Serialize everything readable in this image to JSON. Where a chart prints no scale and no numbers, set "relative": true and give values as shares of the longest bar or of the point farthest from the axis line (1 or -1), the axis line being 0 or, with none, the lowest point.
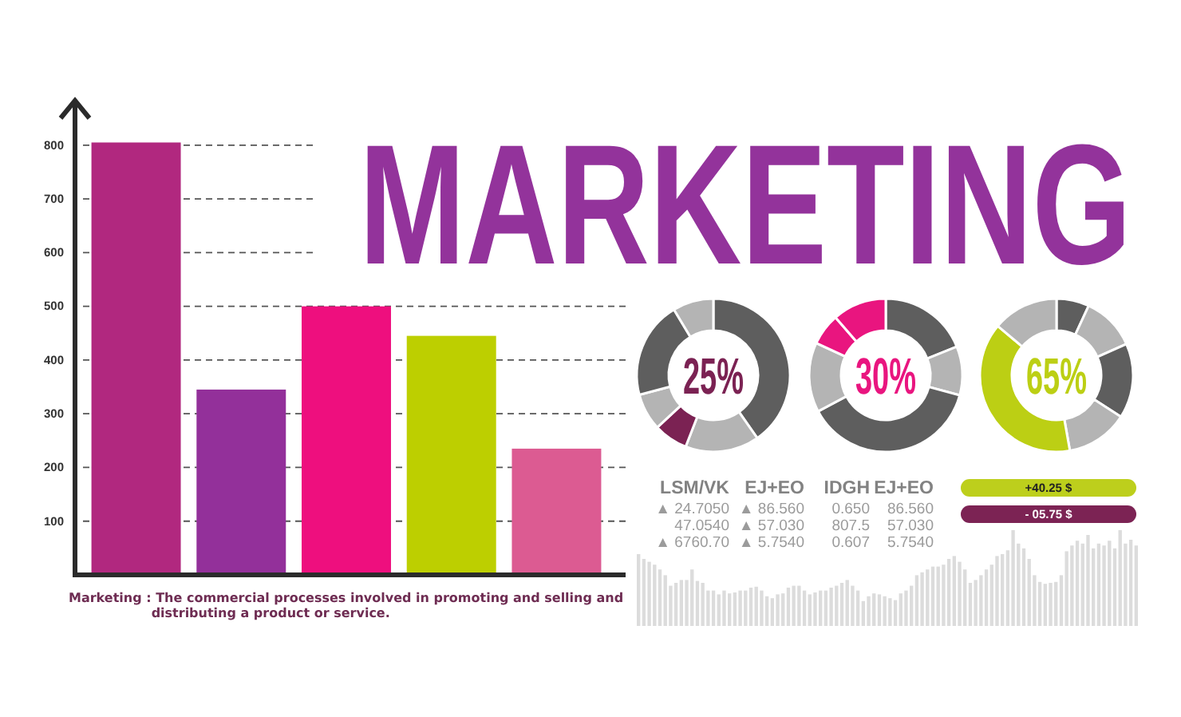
{
  "chart_data": [
    {
      "type": "bar",
      "title": "MARKETING",
      "categories": [
        null,
        null,
        null,
        null,
        null
      ],
      "values": [
        805,
        345,
        500,
        445,
        235
      ],
      "colors": [
        "#b1287f",
        "#93309a",
        "#ee0f7e",
        "#bdcf00",
        "#dc5b92"
      ],
      "ylim": [
        0,
        880
      ],
      "yticks": [
        100,
        200,
        300,
        400,
        500,
        600,
        700,
        800
      ],
      "grid": "y",
      "tick_labels": "y",
      "annotations": [
        "Marketing : The commercial processes involved in promoting and selling and distributing a product or service."
      ]
    },
    {
      "type": "donut",
      "categories": [
        null,
        null,
        null,
        null,
        null,
        null
      ],
      "values": [
        40.3,
        15.6,
        7.2,
        7.8,
        20.5,
        8.6
      ],
      "colors": [
        "#5e5e5e",
        "#b4b4b4",
        "#7b2253",
        "#b4b4b4",
        "#5e5e5e",
        "#b4b4b4"
      ],
      "annotations": [
        "25%"
      ]
    },
    {
      "type": "donut",
      "categories": [
        null,
        null,
        null,
        null,
        null,
        null
      ],
      "values": [
        18.9,
        10.3,
        38.0,
        14.7,
        6.7,
        11.4
      ],
      "colors": [
        "#5e5e5e",
        "#b4b4b4",
        "#5e5e5e",
        "#b4b4b4",
        "#e9157f",
        "#e9157f"
      ],
      "annotations": [
        "30%"
      ]
    },
    {
      "type": "donut",
      "categories": [
        null,
        null,
        null,
        null,
        null,
        null
      ],
      "values": [
        6.9,
        11.4,
        15.8,
        13.1,
        38.9,
        13.9
      ],
      "colors": [
        "#5e5e5e",
        "#b4b4b4",
        "#5e5e5e",
        "#b4b4b4",
        "#bccf14",
        "#b4b4b4"
      ],
      "annotations": [
        "65%"
      ]
    },
    {
      "type": "other",
      "annotations": [
        "LSM/VK",
        "EJ+EO",
        "IDGH",
        "EJ+EO",
        "▲ 24.7050",
        "▲ 86.560",
        "0.650",
        "86.560",
        "47.0540",
        "▲ 57.030",
        "807.5",
        "57.030",
        "▲ 6760.70",
        "▲ 5.7540",
        "0.607",
        "5.7540"
      ]
    },
    {
      "type": "other",
      "annotations": [
        "+40.25 $",
        "- 05.75 $"
      ],
      "colors": [
        "#bdcf1c",
        "#7c2354"
      ]
    },
    {
      "type": "bar",
      "relative": true,
      "color": "#dcdcdc",
      "categories": [
        null,
        null,
        null,
        null,
        null,
        null,
        null,
        null,
        null,
        null,
        null,
        null,
        null,
        null,
        null,
        null,
        null,
        null,
        null,
        null,
        null,
        null,
        null,
        null,
        null,
        null,
        null,
        null,
        null,
        null,
        null,
        null,
        null,
        null,
        null,
        null,
        null,
        null,
        null,
        null,
        null,
        null,
        null,
        null,
        null,
        null,
        null,
        null,
        null,
        null,
        null,
        null,
        null,
        null,
        null,
        null,
        null,
        null,
        null,
        null,
        null,
        null,
        null,
        null,
        null,
        null,
        null,
        null,
        null,
        null,
        null,
        null,
        null,
        null,
        null,
        null,
        null,
        null,
        null,
        null,
        null,
        null,
        null,
        null,
        null,
        null,
        null,
        null,
        null,
        null,
        null,
        null,
        null,
        null
      ],
      "values": [
        0.75,
        0.7,
        0.67,
        0.64,
        0.59,
        0.53,
        0.42,
        0.45,
        0.48,
        0.48,
        0.59,
        0.47,
        0.45,
        0.37,
        0.37,
        0.33,
        0.37,
        0.34,
        0.35,
        0.37,
        0.37,
        0.4,
        0.41,
        0.37,
        0.31,
        0.29,
        0.33,
        0.34,
        0.4,
        0.42,
        0.42,
        0.37,
        0.33,
        0.35,
        0.37,
        0.37,
        0.4,
        0.42,
        0.45,
        0.48,
        0.42,
        0.37,
        0.26,
        0.31,
        0.34,
        0.33,
        0.31,
        0.29,
        0.27,
        0.34,
        0.37,
        0.42,
        0.53,
        0.56,
        0.59,
        0.62,
        0.62,
        0.64,
        0.7,
        0.73,
        0.67,
        0.59,
        0.45,
        0.48,
        0.53,
        0.59,
        0.64,
        0.73,
        0.75,
        0.79,
        1,
        0.86,
        0.81,
        0.7,
        0.53,
        0.46,
        0.44,
        0.45,
        0.46,
        0.53,
        0.78,
        0.84,
        0.89,
        0.86,
        0.95,
        0.81,
        0.86,
        0.84,
        0.89,
        0.81,
        1,
        0.86,
        0.9,
        0.84
      ]
    }
  ]
}
